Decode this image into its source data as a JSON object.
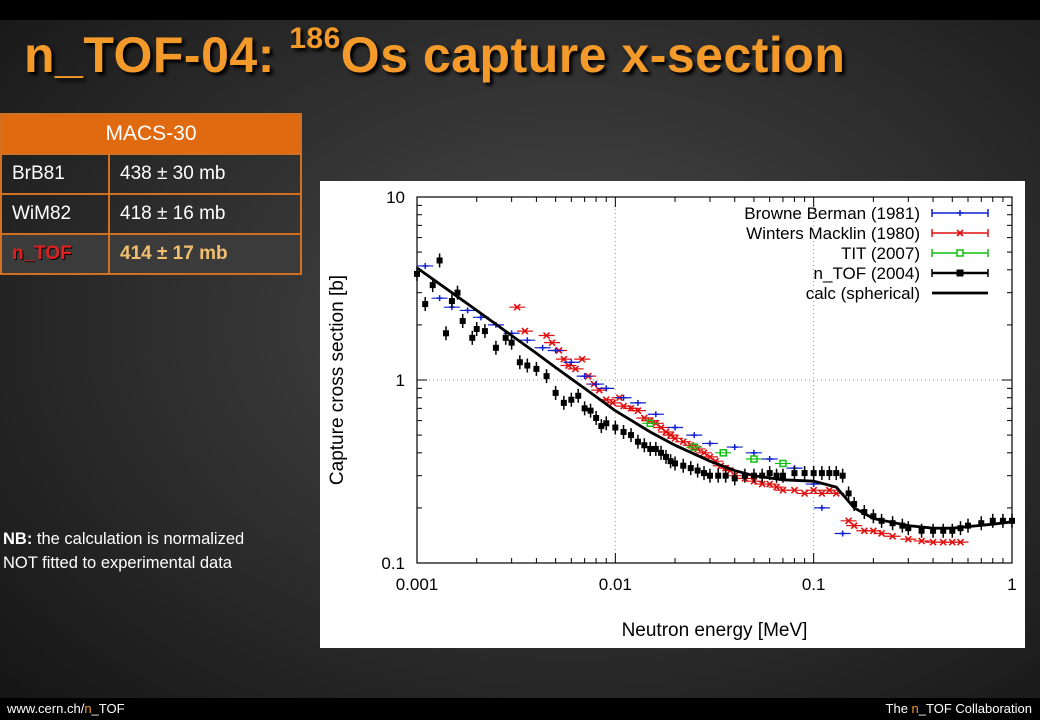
{
  "slide": {
    "title_prefix": "n_TOF-04: ",
    "title_sup": "186",
    "title_suffix": "Os capture x-section"
  },
  "macs_table": {
    "header": "MACS-30",
    "rows": [
      {
        "label": "BrB81",
        "value": "438 ± 30 mb"
      },
      {
        "label": "WiM82",
        "value": "418 ± 16 mb"
      },
      {
        "label": "n_TOF",
        "value": "414 ± 17 mb"
      }
    ]
  },
  "note": {
    "prefix": "NB:",
    "line1_rest": " the calculation is normalized",
    "line2": "NOT fitted to experimental data"
  },
  "footer": {
    "url_prefix": "www.cern.ch/",
    "url_accent": "n",
    "url_suffix": "_TOF",
    "collab_prefix": "The ",
    "collab_accent": "n",
    "collab_suffix": "_TOF Collaboration"
  },
  "colors": {
    "title": "#f39a2a",
    "table_header": "#e06a10",
    "browne": "#1020d0",
    "winters": "#e01010",
    "tit": "#10c010",
    "ntof": "#000000",
    "calc": "#000000"
  },
  "chart_data": {
    "type": "scatter",
    "xlabel": "Neutron energy [MeV]",
    "ylabel": "Capture cross section [b]",
    "xscale": "log",
    "yscale": "log",
    "xlim": [
      0.001,
      1
    ],
    "ylim": [
      0.1,
      10
    ],
    "x_ticks": [
      {
        "value": 0.001,
        "label": "0.001"
      },
      {
        "value": 0.01,
        "label": "0.01"
      },
      {
        "value": 0.1,
        "label": "0.1"
      },
      {
        "value": 1,
        "label": "1"
      }
    ],
    "y_ticks": [
      {
        "value": 0.1,
        "label": "0.1"
      },
      {
        "value": 1,
        "label": "1"
      },
      {
        "value": 10,
        "label": "10"
      }
    ],
    "grid": true,
    "legend_position": "top-right",
    "series": [
      {
        "name": "Browne  Berman (1981)",
        "marker": "plus",
        "color": "#1020d0",
        "points": [
          [
            0.0011,
            4.2
          ],
          [
            0.0013,
            2.8
          ],
          [
            0.0015,
            2.5
          ],
          [
            0.0018,
            2.4
          ],
          [
            0.0021,
            2.2
          ],
          [
            0.0025,
            2.0
          ],
          [
            0.003,
            1.8
          ],
          [
            0.0036,
            1.65
          ],
          [
            0.0043,
            1.5
          ],
          [
            0.005,
            1.45
          ],
          [
            0.006,
            1.25
          ],
          [
            0.007,
            1.05
          ],
          [
            0.008,
            0.95
          ],
          [
            0.009,
            0.9
          ],
          [
            0.011,
            0.8
          ],
          [
            0.013,
            0.75
          ],
          [
            0.016,
            0.65
          ],
          [
            0.02,
            0.55
          ],
          [
            0.025,
            0.5
          ],
          [
            0.03,
            0.45
          ],
          [
            0.04,
            0.43
          ],
          [
            0.05,
            0.4
          ],
          [
            0.06,
            0.37
          ],
          [
            0.08,
            0.33
          ],
          [
            0.1,
            0.27
          ],
          [
            0.11,
            0.2
          ],
          [
            0.14,
            0.145
          ]
        ]
      },
      {
        "name": "Winters  Macklin (1980)",
        "marker": "cross",
        "color": "#e01010",
        "points": [
          [
            0.0032,
            2.5
          ],
          [
            0.0035,
            1.85
          ],
          [
            0.0045,
            1.75
          ],
          [
            0.0048,
            1.6
          ],
          [
            0.0052,
            1.45
          ],
          [
            0.0055,
            1.3
          ],
          [
            0.0058,
            1.2
          ],
          [
            0.0063,
            1.15
          ],
          [
            0.0068,
            1.3
          ],
          [
            0.0073,
            1.05
          ],
          [
            0.0078,
            0.95
          ],
          [
            0.0083,
            0.88
          ],
          [
            0.009,
            0.78
          ],
          [
            0.0097,
            0.75
          ],
          [
            0.0105,
            0.8
          ],
          [
            0.011,
            0.72
          ],
          [
            0.012,
            0.7
          ],
          [
            0.013,
            0.68
          ],
          [
            0.014,
            0.62
          ],
          [
            0.015,
            0.6
          ],
          [
            0.016,
            0.58
          ],
          [
            0.017,
            0.55
          ],
          [
            0.018,
            0.52
          ],
          [
            0.019,
            0.5
          ],
          [
            0.02,
            0.48
          ],
          [
            0.022,
            0.46
          ],
          [
            0.024,
            0.44
          ],
          [
            0.026,
            0.42
          ],
          [
            0.028,
            0.4
          ],
          [
            0.03,
            0.38
          ],
          [
            0.032,
            0.36
          ],
          [
            0.034,
            0.34
          ],
          [
            0.036,
            0.33
          ],
          [
            0.038,
            0.32
          ],
          [
            0.04,
            0.3
          ],
          [
            0.045,
            0.29
          ],
          [
            0.05,
            0.28
          ],
          [
            0.055,
            0.27
          ],
          [
            0.06,
            0.27
          ],
          [
            0.065,
            0.26
          ],
          [
            0.07,
            0.25
          ],
          [
            0.08,
            0.25
          ],
          [
            0.09,
            0.24
          ],
          [
            0.1,
            0.25
          ],
          [
            0.11,
            0.24
          ],
          [
            0.12,
            0.25
          ],
          [
            0.13,
            0.24
          ],
          [
            0.15,
            0.17
          ],
          [
            0.16,
            0.16
          ],
          [
            0.18,
            0.15
          ],
          [
            0.2,
            0.15
          ],
          [
            0.22,
            0.145
          ],
          [
            0.25,
            0.14
          ],
          [
            0.3,
            0.135
          ],
          [
            0.35,
            0.132
          ],
          [
            0.4,
            0.13
          ],
          [
            0.45,
            0.13
          ],
          [
            0.5,
            0.13
          ],
          [
            0.55,
            0.13
          ]
        ]
      },
      {
        "name": "TIT (2007)",
        "marker": "square-open",
        "color": "#10c010",
        "points": [
          [
            0.015,
            0.58
          ],
          [
            0.025,
            0.43
          ],
          [
            0.035,
            0.4
          ],
          [
            0.05,
            0.37
          ],
          [
            0.07,
            0.35
          ]
        ]
      },
      {
        "name": "n_TOF (2004)",
        "marker": "square-filled",
        "color": "#000000",
        "points": [
          [
            0.001,
            3.8
          ],
          [
            0.0011,
            2.6
          ],
          [
            0.0012,
            3.3
          ],
          [
            0.0013,
            4.5
          ],
          [
            0.0014,
            1.8
          ],
          [
            0.0015,
            2.7
          ],
          [
            0.0016,
            3.0
          ],
          [
            0.0017,
            2.1
          ],
          [
            0.0019,
            1.7
          ],
          [
            0.002,
            1.9
          ],
          [
            0.0022,
            1.85
          ],
          [
            0.0025,
            1.5
          ],
          [
            0.0028,
            1.7
          ],
          [
            0.003,
            1.6
          ],
          [
            0.0033,
            1.25
          ],
          [
            0.0036,
            1.2
          ],
          [
            0.004,
            1.15
          ],
          [
            0.0045,
            1.05
          ],
          [
            0.005,
            0.85
          ],
          [
            0.0055,
            0.75
          ],
          [
            0.006,
            0.78
          ],
          [
            0.0065,
            0.82
          ],
          [
            0.007,
            0.7
          ],
          [
            0.0075,
            0.68
          ],
          [
            0.008,
            0.62
          ],
          [
            0.0085,
            0.56
          ],
          [
            0.009,
            0.58
          ],
          [
            0.01,
            0.55
          ],
          [
            0.011,
            0.52
          ],
          [
            0.012,
            0.5
          ],
          [
            0.013,
            0.46
          ],
          [
            0.014,
            0.44
          ],
          [
            0.015,
            0.42
          ],
          [
            0.016,
            0.42
          ],
          [
            0.017,
            0.4
          ],
          [
            0.018,
            0.38
          ],
          [
            0.019,
            0.36
          ],
          [
            0.02,
            0.35
          ],
          [
            0.022,
            0.34
          ],
          [
            0.024,
            0.33
          ],
          [
            0.026,
            0.32
          ],
          [
            0.028,
            0.31
          ],
          [
            0.03,
            0.3
          ],
          [
            0.033,
            0.3
          ],
          [
            0.036,
            0.3
          ],
          [
            0.04,
            0.29
          ],
          [
            0.045,
            0.3
          ],
          [
            0.05,
            0.3
          ],
          [
            0.055,
            0.3
          ],
          [
            0.06,
            0.31
          ],
          [
            0.065,
            0.3
          ],
          [
            0.07,
            0.3
          ],
          [
            0.08,
            0.31
          ],
          [
            0.09,
            0.31
          ],
          [
            0.1,
            0.31
          ],
          [
            0.11,
            0.31
          ],
          [
            0.12,
            0.31
          ],
          [
            0.13,
            0.31
          ],
          [
            0.14,
            0.3
          ],
          [
            0.15,
            0.24
          ],
          [
            0.16,
            0.21
          ],
          [
            0.18,
            0.19
          ],
          [
            0.2,
            0.18
          ],
          [
            0.22,
            0.17
          ],
          [
            0.25,
            0.165
          ],
          [
            0.28,
            0.16
          ],
          [
            0.3,
            0.155
          ],
          [
            0.35,
            0.15
          ],
          [
            0.4,
            0.15
          ],
          [
            0.45,
            0.15
          ],
          [
            0.5,
            0.15
          ],
          [
            0.55,
            0.155
          ],
          [
            0.6,
            0.16
          ],
          [
            0.7,
            0.165
          ],
          [
            0.8,
            0.17
          ],
          [
            0.9,
            0.17
          ],
          [
            1.0,
            0.17
          ]
        ]
      },
      {
        "name": "calc (spherical)",
        "marker": "line",
        "color": "#000000",
        "points": [
          [
            0.001,
            4.1
          ],
          [
            0.0015,
            3.0
          ],
          [
            0.002,
            2.4
          ],
          [
            0.003,
            1.75
          ],
          [
            0.004,
            1.4
          ],
          [
            0.005,
            1.17
          ],
          [
            0.007,
            0.9
          ],
          [
            0.01,
            0.68
          ],
          [
            0.015,
            0.52
          ],
          [
            0.02,
            0.44
          ],
          [
            0.03,
            0.36
          ],
          [
            0.04,
            0.32
          ],
          [
            0.05,
            0.3
          ],
          [
            0.07,
            0.285
          ],
          [
            0.1,
            0.28
          ],
          [
            0.13,
            0.26
          ],
          [
            0.16,
            0.2
          ],
          [
            0.2,
            0.175
          ],
          [
            0.3,
            0.16
          ],
          [
            0.4,
            0.155
          ],
          [
            0.5,
            0.155
          ],
          [
            0.6,
            0.158
          ],
          [
            0.8,
            0.163
          ],
          [
            1.0,
            0.168
          ]
        ]
      }
    ]
  }
}
